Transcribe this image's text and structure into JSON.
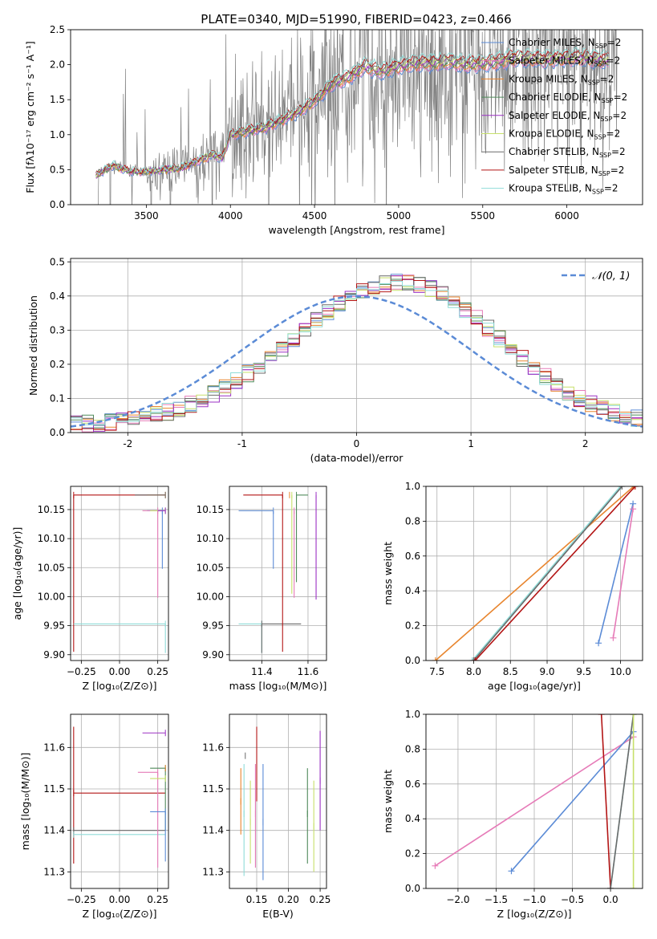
{
  "figure": {
    "title": "PLATE=0340, MJD=51990, FIBERID=0423, z=0.466"
  },
  "colors": {
    "Chabrier MILES": "#5b8bd6",
    "Salpeter MILES": "#e67bb8",
    "Kroupa MILES": "#e8852e",
    "Chabrier ELODIE": "#4f8a5a",
    "Salpeter ELODIE": "#9b30c4",
    "Kroupa ELODIE": "#c7e06a",
    "Chabrier STELIB": "#6a6a6a",
    "Salpeter STELIB": "#b31515",
    "Kroupa STELIB": "#8fdcd8",
    "data": "#7f7f7f",
    "gaussian": "#5b8bd6"
  },
  "chart_data": [
    {
      "id": "spectrum",
      "type": "line",
      "title": "PLATE=0340, MJD=51990, FIBERID=0423, z=0.466",
      "xlabel": "wavelength [Angstrom, rest frame]",
      "ylabel": "Flux [fλ10⁻¹⁷ erg cm⁻² s⁻¹ A⁻¹]",
      "xlim": [
        3050,
        6450
      ],
      "ylim": [
        0,
        2.5
      ],
      "xticks": [
        3500,
        4000,
        4500,
        5000,
        5500,
        6000
      ],
      "yticks": [
        0.0,
        0.5,
        1.0,
        1.5,
        2.0,
        2.5
      ],
      "legend_position": "top-right",
      "grid": false,
      "series": [
        {
          "name": "Chabrier MILES, N_SSP=2",
          "label_main": "Chabrier MILES, N",
          "label_sub": "SSP",
          "label_end": "=2"
        },
        {
          "name": "Salpeter MILES, N_SSP=2",
          "label_main": "Salpeter MILES, N",
          "label_sub": "SSP",
          "label_end": "=2"
        },
        {
          "name": "Kroupa MILES, N_SSP=2",
          "label_main": "Kroupa MILES, N",
          "label_sub": "SSP",
          "label_end": "=2"
        },
        {
          "name": "Chabrier ELODIE, N_SSP=2",
          "label_main": "Chabrier ELODIE, N",
          "label_sub": "SSP",
          "label_end": "=2"
        },
        {
          "name": "Salpeter ELODIE, N_SSP=2",
          "label_main": "Salpeter ELODIE, N",
          "label_sub": "SSP",
          "label_end": "=2"
        },
        {
          "name": "Kroupa ELODIE, N_SSP=2",
          "label_main": "Kroupa ELODIE, N",
          "label_sub": "SSP",
          "label_end": "=2"
        },
        {
          "name": "Chabrier STELIB, N_SSP=2",
          "label_main": "Chabrier STELIB, N",
          "label_sub": "SSP",
          "label_end": "=2"
        },
        {
          "name": "Salpeter STELIB, N_SSP=2",
          "label_main": "Salpeter STELIB, N",
          "label_sub": "SSP",
          "label_end": "=2"
        },
        {
          "name": "Kroupa STELIB, N_SSP=2",
          "label_main": "Kroupa STELIB, N",
          "label_sub": "SSP",
          "label_end": "=2"
        }
      ],
      "model_wavelength_range": [
        3200,
        6250
      ],
      "data_wavelength_range": [
        3190,
        6300
      ],
      "model_continuum": [
        [
          3200,
          0.42
        ],
        [
          3300,
          0.56
        ],
        [
          3400,
          0.48
        ],
        [
          3500,
          0.47
        ],
        [
          3600,
          0.5
        ],
        [
          3700,
          0.52
        ],
        [
          3800,
          0.62
        ],
        [
          3900,
          0.72
        ],
        [
          3950,
          0.66
        ],
        [
          4000,
          1.0
        ],
        [
          4100,
          1.05
        ],
        [
          4200,
          1.1
        ],
        [
          4300,
          1.2
        ],
        [
          4400,
          1.32
        ],
        [
          4500,
          1.48
        ],
        [
          4600,
          1.72
        ],
        [
          4700,
          1.82
        ],
        [
          4800,
          1.98
        ],
        [
          4900,
          1.9
        ],
        [
          5000,
          1.98
        ],
        [
          5100,
          2.02
        ],
        [
          5200,
          2.02
        ],
        [
          5300,
          2.05
        ],
        [
          5400,
          2.0
        ],
        [
          5500,
          2.02
        ],
        [
          5600,
          2.05
        ],
        [
          5700,
          2.1
        ],
        [
          5800,
          2.08
        ],
        [
          5900,
          2.08
        ],
        [
          6000,
          2.1
        ],
        [
          6100,
          2.1
        ],
        [
          6250,
          2.06
        ]
      ]
    },
    {
      "id": "residuals",
      "type": "line",
      "xlabel": "(data-model)/error",
      "ylabel": "Normed distribution",
      "xlim": [
        -2.5,
        2.5
      ],
      "ylim": [
        0,
        0.51
      ],
      "xticks": [
        -2,
        -1,
        0,
        1,
        2
      ],
      "yticks": [
        0.0,
        0.1,
        0.2,
        0.3,
        0.4,
        0.5
      ],
      "grid": true,
      "legend_position": "top-right",
      "gaussian_label": "𝒩(0, 1)",
      "bin_width": 0.1,
      "bin_start": -2.5,
      "histogram_peak_value": 0.42,
      "histogram_peak_center": 0.4
    },
    {
      "id": "age-vs-Z",
      "type": "scatter",
      "xlabel": "Z [log₁₀(Z/Z⊙)]",
      "ylabel": "age  [log₁₀(age/yr)]",
      "xlim": [
        -0.32,
        0.32
      ],
      "ylim": [
        9.89,
        10.19
      ],
      "xticks": [
        -0.25,
        0.0,
        0.25
      ],
      "xticklabels": [
        "−0.25",
        "0.00",
        "0.25"
      ],
      "yticks": [
        9.9,
        9.95,
        10.0,
        10.05,
        10.1,
        10.15
      ],
      "grid": true,
      "points": [
        {
          "series": "Salpeter STELIB",
          "x": -0.3,
          "y": 10.175,
          "xerr": [
            0.0,
            0.6
          ],
          "yerr": [
            0.27,
            0.0
          ]
        },
        {
          "series": "Kroupa STELIB",
          "x": 0.3,
          "y": 9.953,
          "xerr": [
            0.6,
            0.0
          ],
          "yerr": [
            0.05,
            0.0
          ]
        },
        {
          "series": "Chabrier MILES",
          "x": 0.28,
          "y": 10.148,
          "xerr": [
            0.1,
            0.0
          ],
          "yerr": [
            0.1,
            0.0
          ]
        },
        {
          "series": "Salpeter MILES",
          "x": 0.25,
          "y": 10.148,
          "xerr": [
            0.1,
            0.0
          ],
          "yerr": [
            0.15,
            0.0
          ]
        },
        {
          "series": "Kroupa MILES",
          "x": 0.3,
          "y": 10.175,
          "xerr": [
            0.12,
            0.0
          ],
          "yerr": [
            0.0,
            0.0
          ]
        },
        {
          "series": "Chabrier STELIB",
          "x": 0.3,
          "y": 10.175,
          "xerr": [
            0.2,
            0.0
          ],
          "yerr": [
            0.0,
            0.0
          ]
        },
        {
          "series": "Kroupa ELODIE",
          "x": 0.3,
          "y": 10.148,
          "xerr": [
            0.1,
            0.0
          ],
          "yerr": [
            0.0,
            0.0
          ]
        },
        {
          "series": "Salpeter ELODIE",
          "x": 0.3,
          "y": 10.148,
          "xerr": [
            0.05,
            0.0
          ],
          "yerr": [
            0.0,
            0.0
          ]
        }
      ]
    },
    {
      "id": "age-vs-mass",
      "type": "scatter",
      "xlabel": "mass [log₁₀(M/M⊙)]",
      "xlim": [
        11.26,
        11.68
      ],
      "ylim": [
        9.89,
        10.19
      ],
      "xticks": [
        11.4,
        11.6
      ],
      "yticks": [
        9.9,
        9.95,
        10.0,
        10.05,
        10.1,
        10.15
      ],
      "grid": true,
      "points": [
        {
          "series": "Kroupa STELIB",
          "x": 11.4,
          "y": 9.953,
          "xerr": [
            0.1,
            0.0
          ],
          "yerr": [
            0.05,
            0.0
          ]
        },
        {
          "series": "Chabrier STELIB",
          "x": 11.4,
          "y": 9.953,
          "xerr": [
            0.0,
            0.17
          ],
          "yerr": [
            0.05,
            0.0
          ]
        },
        {
          "series": "Salpeter STELIB",
          "x": 11.49,
          "y": 10.175,
          "xerr": [
            0.17,
            0.0
          ],
          "yerr": [
            0.27,
            0.0
          ]
        },
        {
          "series": "Chabrier MILES",
          "x": 11.45,
          "y": 10.148,
          "xerr": [
            0.15,
            0.0
          ],
          "yerr": [
            0.1,
            0.0
          ]
        },
        {
          "series": "Salpeter MILES",
          "x": 11.54,
          "y": 10.148,
          "xerr": [
            0.0,
            0.0
          ],
          "yerr": [
            0.15,
            0.0
          ]
        },
        {
          "series": "Kroupa MILES",
          "x": 11.52,
          "y": 10.175,
          "xerr": [
            0.0,
            0.0
          ],
          "yerr": [
            0.0,
            0.0
          ]
        },
        {
          "series": "Chabrier ELODIE",
          "x": 11.55,
          "y": 10.175,
          "xerr": [
            0.0,
            0.05
          ],
          "yerr": [
            0.15,
            0.0
          ]
        },
        {
          "series": "Kroupa ELODIE",
          "x": 11.53,
          "y": 10.175,
          "xerr": [
            0.0,
            0.0
          ],
          "yerr": [
            0.17,
            0.0
          ]
        },
        {
          "series": "Salpeter ELODIE",
          "x": 11.635,
          "y": 10.175,
          "xerr": [
            0.0,
            0.0
          ],
          "yerr": [
            0.18,
            0.0
          ]
        }
      ]
    },
    {
      "id": "weight-vs-age",
      "type": "line",
      "xlabel": "age  [log₁₀(age/yr)]",
      "ylabel": "mass weight",
      "xlim": [
        7.35,
        10.3
      ],
      "ylim": [
        0,
        1.0
      ],
      "xticks": [
        7.5,
        8.0,
        8.5,
        9.0,
        9.5,
        10.0
      ],
      "yticks": [
        0.0,
        0.2,
        0.4,
        0.6,
        0.8,
        1.0
      ],
      "grid": true,
      "lines": [
        {
          "series": "Kroupa MILES",
          "x": [
            7.48,
            10.18
          ],
          "y": [
            0.0,
            1.0
          ]
        },
        {
          "series": "Kroupa STELIB",
          "x": [
            7.98,
            10.0
          ],
          "y": [
            0.0,
            1.0
          ]
        },
        {
          "series": "Chabrier STELIB",
          "x": [
            8.0,
            10.02
          ],
          "y": [
            0.0,
            1.0
          ]
        },
        {
          "series": "Salpeter STELIB",
          "x": [
            8.02,
            10.2
          ],
          "y": [
            0.0,
            1.0
          ]
        },
        {
          "series": "Chabrier MILES",
          "x": [
            9.7,
            10.17
          ],
          "y": [
            0.1,
            0.9
          ]
        },
        {
          "series": "Salpeter MILES",
          "x": [
            9.9,
            10.17
          ],
          "y": [
            0.13,
            0.87
          ]
        }
      ]
    },
    {
      "id": "mass-vs-Z",
      "type": "scatter",
      "xlabel": "Z [log₁₀(Z/Z⊙)]",
      "ylabel": "mass [log₁₀(M/M⊙)]",
      "xlim": [
        -0.32,
        0.32
      ],
      "ylim": [
        11.26,
        11.68
      ],
      "xticks": [
        -0.25,
        0.0,
        0.25
      ],
      "xticklabels": [
        "−0.25",
        "0.00",
        "0.25"
      ],
      "yticks": [
        11.3,
        11.4,
        11.5,
        11.6
      ],
      "grid": true,
      "points": [
        {
          "series": "Salpeter STELIB",
          "x": -0.3,
          "y": 11.49,
          "xerr": [
            0.0,
            0.6
          ],
          "yerr": [
            0.17,
            0.16
          ]
        },
        {
          "series": "Chabrier STELIB",
          "x": -0.3,
          "y": 11.4,
          "xerr": [
            0.0,
            0.6
          ],
          "yerr": [
            0.0,
            0.0
          ]
        },
        {
          "series": "Kroupa STELIB",
          "x": -0.3,
          "y": 11.39,
          "xerr": [
            0.0,
            0.6
          ],
          "yerr": [
            0.0,
            0.0
          ]
        },
        {
          "series": "Salpeter ELODIE",
          "x": 0.3,
          "y": 11.635,
          "xerr": [
            0.15,
            0.0
          ],
          "yerr": [
            0.0,
            0.0
          ]
        },
        {
          "series": "Chabrier ELODIE",
          "x": 0.3,
          "y": 11.55,
          "xerr": [
            0.1,
            0.0
          ],
          "yerr": [
            0.15,
            0.0
          ]
        },
        {
          "series": "Salpeter MILES",
          "x": 0.25,
          "y": 11.54,
          "xerr": [
            0.13,
            0.0
          ],
          "yerr": [
            0.23,
            0.0
          ]
        },
        {
          "series": "Kroupa ELODIE",
          "x": 0.3,
          "y": 11.525,
          "xerr": [
            0.1,
            0.0
          ],
          "yerr": [
            0.0,
            0.0
          ]
        },
        {
          "series": "Chabrier MILES",
          "x": 0.3,
          "y": 11.445,
          "xerr": [
            0.1,
            0.0
          ],
          "yerr": [
            0.12,
            0.0
          ]
        },
        {
          "series": "Kroupa MILES",
          "x": 0.3,
          "y": 11.55,
          "xerr": [
            0.0,
            0.0
          ],
          "yerr": [
            0.0,
            0.0
          ]
        }
      ]
    },
    {
      "id": "mass-vs-ebv",
      "type": "scatter",
      "xlabel": "E(B-V)",
      "xlim": [
        0.107,
        0.26
      ],
      "ylim": [
        11.26,
        11.68
      ],
      "xticks": [
        0.15,
        0.2,
        0.25
      ],
      "xticklabels": [
        "0.15",
        "0.20",
        "0.25"
      ],
      "yticks": [
        11.3,
        11.4,
        11.5,
        11.6
      ],
      "grid": true,
      "points": [
        {
          "series": "Kroupa MILES",
          "x": 0.125,
          "y": 11.47,
          "yerr": [
            0.08,
            0.08
          ]
        },
        {
          "series": "Kroupa STELIB",
          "x": 0.13,
          "y": 11.44,
          "yerr": [
            0.15,
            0.12
          ]
        },
        {
          "series": "Chabrier STELIB",
          "x": 0.132,
          "y": 11.58,
          "yerr": [
            0.0,
            0.0
          ]
        },
        {
          "series": "Kroupa ELODIE",
          "x": 0.14,
          "y": 11.42,
          "yerr": [
            0.1,
            0.1
          ]
        },
        {
          "series": "Salpeter MILES",
          "x": 0.148,
          "y": 11.44,
          "yerr": [
            0.13,
            0.12
          ]
        },
        {
          "series": "Salpeter STELIB",
          "x": 0.15,
          "y": 11.56,
          "yerr": [
            0.09,
            0.09
          ]
        },
        {
          "series": "Chabrier MILES",
          "x": 0.16,
          "y": 11.42,
          "yerr": [
            0.14,
            0.14
          ]
        },
        {
          "series": "Chabrier ELODIE",
          "x": 0.23,
          "y": 11.44,
          "yerr": [
            0.12,
            0.11
          ]
        },
        {
          "series": "Kroupa ELODIE",
          "x": 0.24,
          "y": 11.41,
          "yerr": [
            0.11,
            0.11
          ]
        },
        {
          "series": "Salpeter ELODIE",
          "x": 0.25,
          "y": 11.52,
          "yerr": [
            0.12,
            0.12
          ]
        }
      ]
    },
    {
      "id": "weight-vs-Z",
      "type": "line",
      "xlabel": "Z [log₁₀(Z/Z⊙)]",
      "ylabel": "mass weight",
      "xlim": [
        -2.42,
        0.42
      ],
      "ylim": [
        0,
        1.0
      ],
      "xticks": [
        -2.0,
        -1.5,
        -1.0,
        -0.5,
        0.0
      ],
      "xticklabels": [
        "−2.0",
        "−1.5",
        "−1.0",
        "−0.5",
        "0.0"
      ],
      "yticks": [
        0.0,
        0.2,
        0.4,
        0.6,
        0.8,
        1.0
      ],
      "grid": true,
      "lines": [
        {
          "series": "Salpeter MILES",
          "x": [
            -2.3,
            0.3
          ],
          "y": [
            0.13,
            0.87
          ]
        },
        {
          "series": "Chabrier MILES",
          "x": [
            -1.3,
            0.3
          ],
          "y": [
            0.1,
            0.9
          ]
        },
        {
          "series": "Salpeter STELIB",
          "x": [
            -0.12,
            0.0
          ],
          "y": [
            1.0,
            0.0
          ]
        },
        {
          "series": "Kroupa STELIB",
          "x": [
            0.0,
            0.3
          ],
          "y": [
            0.0,
            1.0
          ]
        },
        {
          "series": "Chabrier STELIB",
          "x": [
            0.0,
            0.3
          ],
          "y": [
            0.0,
            1.0
          ]
        },
        {
          "series": "Kroupa ELODIE",
          "x": [
            0.3,
            0.3
          ],
          "y": [
            0.0,
            1.0
          ]
        }
      ]
    }
  ]
}
